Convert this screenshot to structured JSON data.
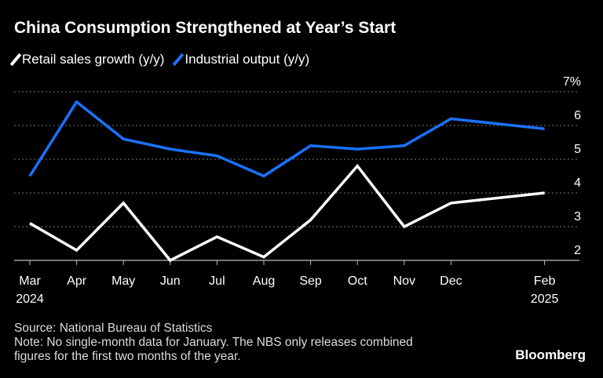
{
  "title": "China Consumption Strengthened at Year’s Start",
  "source": "Source: National Bureau of Statistics",
  "note_lines": [
    "Note: No single-month data for January. The NBS only releases combined",
    "figures for the first two months of the year."
  ],
  "logo": "Bloomberg",
  "chart_data": {
    "type": "line",
    "x": [
      "2024-03",
      "2024-04",
      "2024-05",
      "2024-06",
      "2024-07",
      "2024-08",
      "2024-09",
      "2024-10",
      "2024-11",
      "2024-12",
      "2025-02"
    ],
    "x_tick_labels": [
      "Mar\n2024",
      "Apr",
      "May",
      "Jun",
      "Jul",
      "Aug",
      "Sep",
      "Oct",
      "Nov",
      "Dec",
      "Feb\n2025"
    ],
    "y_tick_labels": [
      "7%",
      "6",
      "5",
      "4",
      "3",
      "2"
    ],
    "y_ticks": [
      7,
      6,
      5,
      4,
      3,
      2
    ],
    "ylim": [
      2,
      7
    ],
    "grid": true,
    "legend": "top-left",
    "series": [
      {
        "name": "Retail sales growth (y/y)",
        "color": "#ffffff",
        "values": [
          3.1,
          2.3,
          3.7,
          2.0,
          2.7,
          2.1,
          3.2,
          4.8,
          3.0,
          3.7,
          4.0
        ]
      },
      {
        "name": "Industrial output (y/y)",
        "color": "#1a72ff",
        "values": [
          4.5,
          6.7,
          5.6,
          5.3,
          5.1,
          4.5,
          5.4,
          5.3,
          5.4,
          6.2,
          5.9
        ]
      }
    ]
  }
}
